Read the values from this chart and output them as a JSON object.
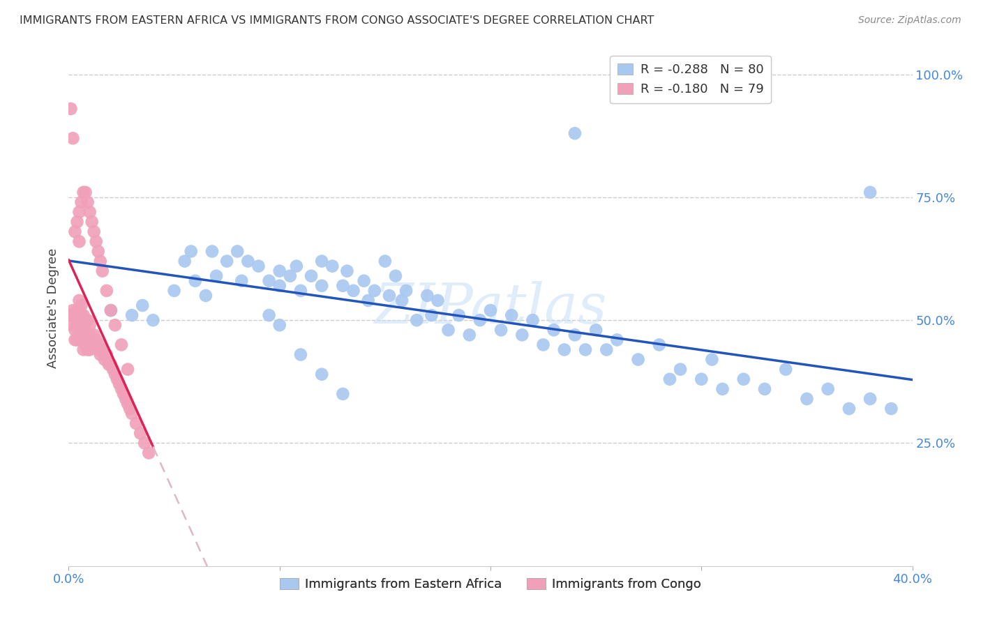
{
  "title": "IMMIGRANTS FROM EASTERN AFRICA VS IMMIGRANTS FROM CONGO ASSOCIATE'S DEGREE CORRELATION CHART",
  "source": "Source: ZipAtlas.com",
  "ylabel": "Associate's Degree",
  "right_ytick_vals": [
    1.0,
    0.75,
    0.5,
    0.25
  ],
  "right_ytick_labels": [
    "100.0%",
    "75.0%",
    "50.0%",
    "25.0%"
  ],
  "xlim": [
    0.0,
    0.4
  ],
  "ylim": [
    0.0,
    1.05
  ],
  "legend_r1": "R = -0.288",
  "legend_n1": "N = 80",
  "legend_r2": "R = -0.180",
  "legend_n2": "N = 79",
  "scatter_blue_color": "#a8c8f0",
  "scatter_pink_color": "#f0a0b8",
  "line_blue_color": "#2255bb",
  "line_pink_solid_color": "#dd2255",
  "line_pink_dash_color": "#ddb8c8",
  "watermark": "ZIPatlas",
  "blue_label": "Immigrants from Eastern Africa",
  "pink_label": "Immigrants from Congo",
  "grid_color": "#cccccc",
  "background_color": "#ffffff",
  "title_color": "#333333",
  "axis_label_color": "#4488dd",
  "legend_r_color": "#dd2255",
  "legend_n_color": "#2266cc",
  "blue_x": [
    0.02,
    0.03,
    0.035,
    0.04,
    0.05,
    0.055,
    0.058,
    0.06,
    0.065,
    0.068,
    0.07,
    0.075,
    0.08,
    0.082,
    0.085,
    0.09,
    0.095,
    0.1,
    0.1,
    0.105,
    0.108,
    0.11,
    0.115,
    0.12,
    0.12,
    0.125,
    0.13,
    0.132,
    0.135,
    0.14,
    0.142,
    0.145,
    0.15,
    0.152,
    0.155,
    0.158,
    0.16,
    0.165,
    0.17,
    0.172,
    0.175,
    0.18,
    0.185,
    0.19,
    0.195,
    0.2,
    0.205,
    0.21,
    0.215,
    0.22,
    0.225,
    0.23,
    0.235,
    0.24,
    0.245,
    0.25,
    0.255,
    0.26,
    0.27,
    0.28,
    0.285,
    0.29,
    0.3,
    0.305,
    0.31,
    0.32,
    0.33,
    0.34,
    0.35,
    0.36,
    0.37,
    0.38,
    0.39,
    0.24,
    0.38,
    0.095,
    0.1,
    0.11,
    0.12,
    0.13
  ],
  "blue_y": [
    0.52,
    0.51,
    0.53,
    0.5,
    0.56,
    0.62,
    0.64,
    0.58,
    0.55,
    0.64,
    0.59,
    0.62,
    0.64,
    0.58,
    0.62,
    0.61,
    0.58,
    0.6,
    0.57,
    0.59,
    0.61,
    0.56,
    0.59,
    0.62,
    0.57,
    0.61,
    0.57,
    0.6,
    0.56,
    0.58,
    0.54,
    0.56,
    0.62,
    0.55,
    0.59,
    0.54,
    0.56,
    0.5,
    0.55,
    0.51,
    0.54,
    0.48,
    0.51,
    0.47,
    0.5,
    0.52,
    0.48,
    0.51,
    0.47,
    0.5,
    0.45,
    0.48,
    0.44,
    0.47,
    0.44,
    0.48,
    0.44,
    0.46,
    0.42,
    0.45,
    0.38,
    0.4,
    0.38,
    0.42,
    0.36,
    0.38,
    0.36,
    0.4,
    0.34,
    0.36,
    0.32,
    0.34,
    0.32,
    0.88,
    0.76,
    0.51,
    0.49,
    0.43,
    0.39,
    0.35
  ],
  "pink_x": [
    0.001,
    0.002,
    0.002,
    0.003,
    0.003,
    0.003,
    0.004,
    0.004,
    0.004,
    0.005,
    0.005,
    0.005,
    0.005,
    0.005,
    0.006,
    0.006,
    0.006,
    0.006,
    0.007,
    0.007,
    0.007,
    0.007,
    0.008,
    0.008,
    0.008,
    0.009,
    0.009,
    0.009,
    0.01,
    0.01,
    0.01,
    0.011,
    0.012,
    0.012,
    0.013,
    0.014,
    0.015,
    0.015,
    0.016,
    0.017,
    0.018,
    0.019,
    0.02,
    0.021,
    0.022,
    0.023,
    0.024,
    0.025,
    0.026,
    0.027,
    0.028,
    0.029,
    0.03,
    0.032,
    0.034,
    0.036,
    0.038,
    0.003,
    0.004,
    0.005,
    0.005,
    0.006,
    0.007,
    0.008,
    0.009,
    0.01,
    0.011,
    0.012,
    0.013,
    0.014,
    0.015,
    0.016,
    0.018,
    0.02,
    0.022,
    0.025,
    0.028,
    0.001,
    0.002
  ],
  "pink_y": [
    0.51,
    0.52,
    0.49,
    0.51,
    0.48,
    0.46,
    0.52,
    0.49,
    0.46,
    0.54,
    0.52,
    0.5,
    0.48,
    0.46,
    0.53,
    0.51,
    0.49,
    0.46,
    0.51,
    0.49,
    0.47,
    0.44,
    0.5,
    0.48,
    0.45,
    0.5,
    0.47,
    0.44,
    0.49,
    0.47,
    0.44,
    0.46,
    0.47,
    0.45,
    0.46,
    0.44,
    0.45,
    0.43,
    0.44,
    0.42,
    0.43,
    0.41,
    0.41,
    0.4,
    0.39,
    0.38,
    0.37,
    0.36,
    0.35,
    0.34,
    0.33,
    0.32,
    0.31,
    0.29,
    0.27,
    0.25,
    0.23,
    0.68,
    0.7,
    0.66,
    0.72,
    0.74,
    0.76,
    0.76,
    0.74,
    0.72,
    0.7,
    0.68,
    0.66,
    0.64,
    0.62,
    0.6,
    0.56,
    0.52,
    0.49,
    0.45,
    0.4,
    0.93,
    0.87
  ]
}
